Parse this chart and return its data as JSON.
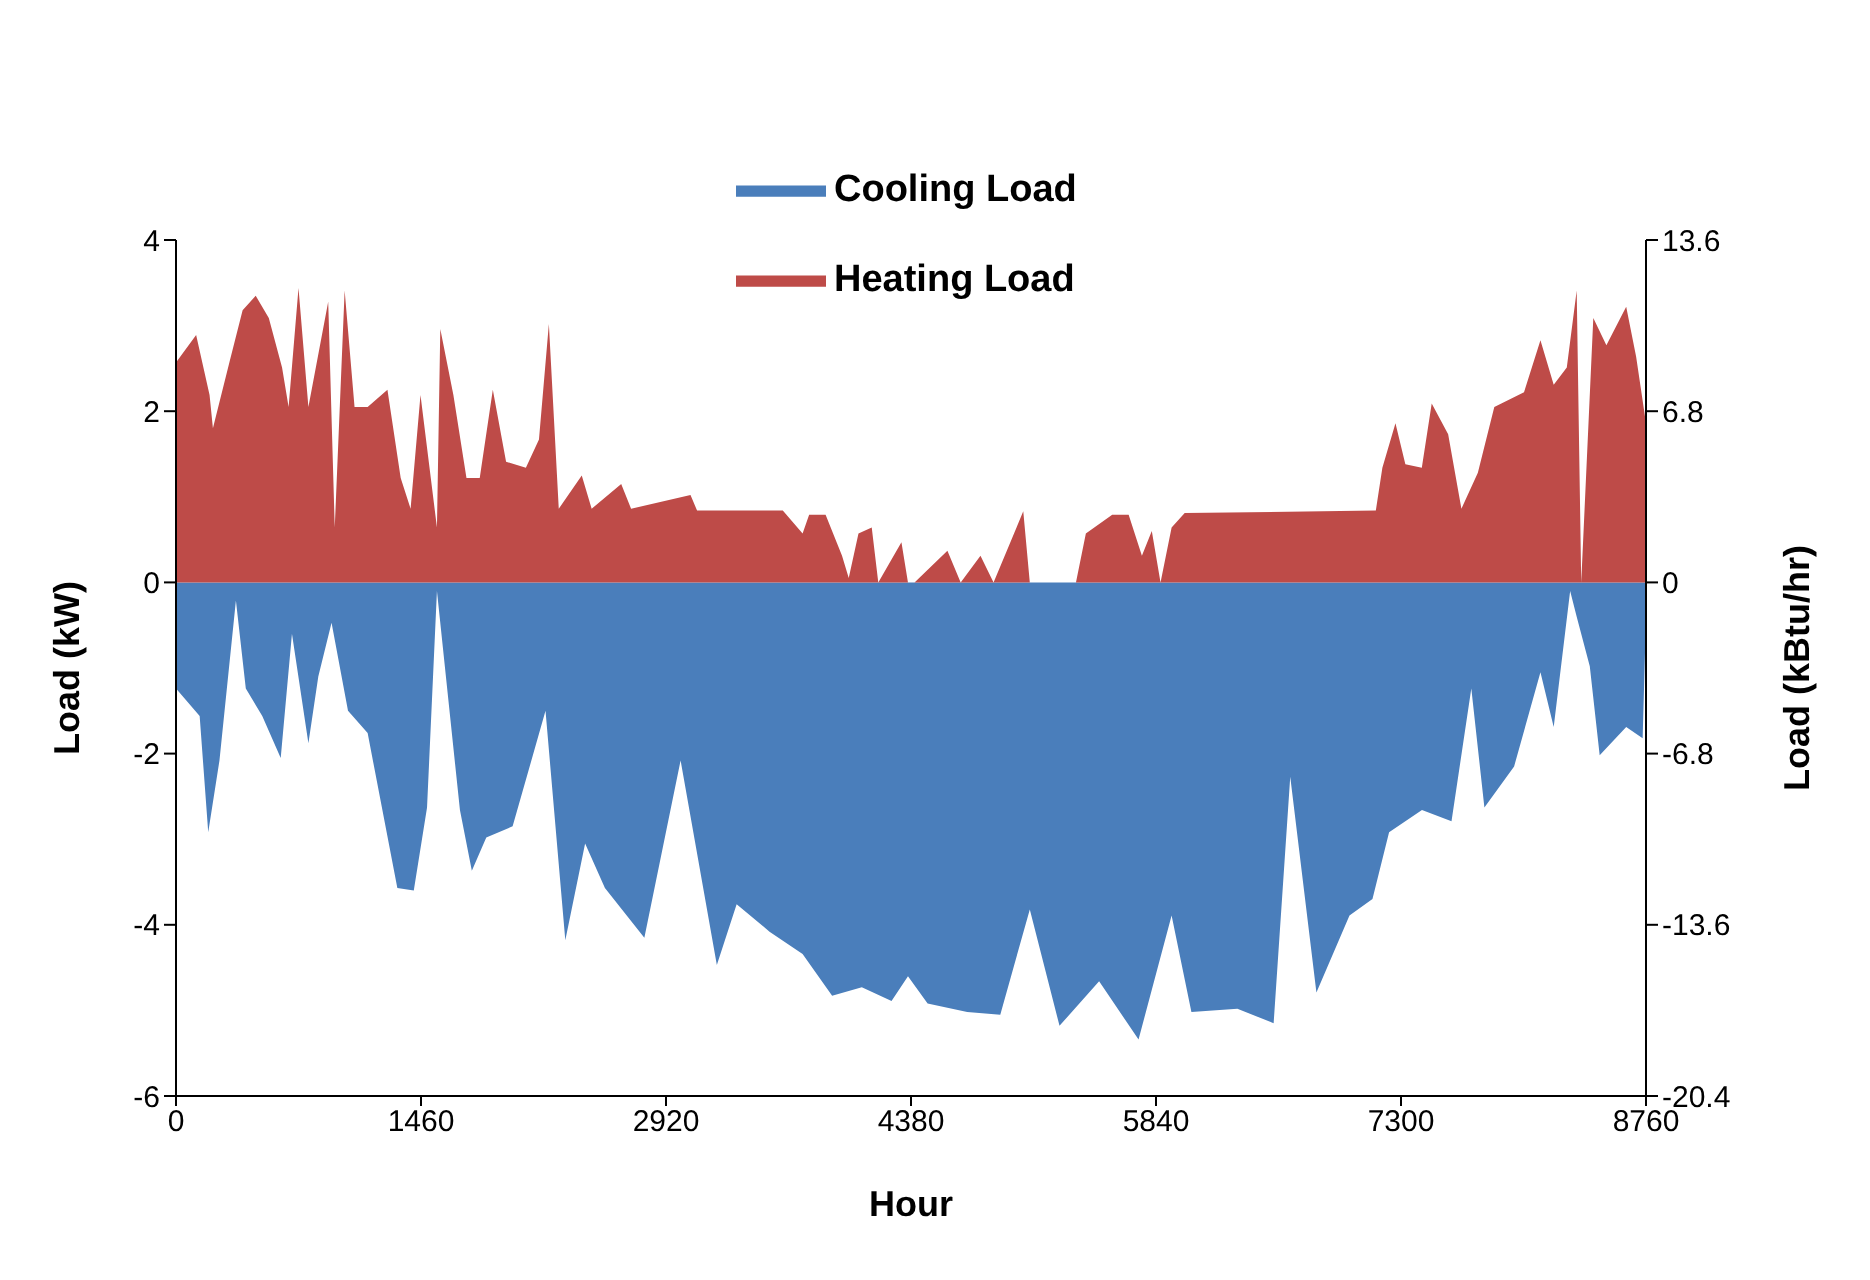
{
  "chart_data": {
    "type": "area",
    "xlabel": "Hour",
    "ylabel": "Load (kW)",
    "y2label": "Load (kBtu/hr)",
    "xlim": [
      0,
      8760
    ],
    "xticks": [
      0,
      1460,
      2920,
      4380,
      5840,
      7300,
      8760
    ],
    "ylim": [
      -6,
      4
    ],
    "yticks": [
      -6,
      -4,
      -2,
      0,
      2,
      4
    ],
    "y2lim": [
      -20.4,
      13.6
    ],
    "y2ticks": [
      -20.4,
      -13.6,
      -6.8,
      0,
      6.8,
      13.6
    ],
    "grid": false,
    "legend": "top",
    "line_style": "solid",
    "marker": "none",
    "series": [
      {
        "name": "Cooling Load",
        "color": "#4a7ebb",
        "x": [
          0,
          141,
          192,
          259,
          357,
          416,
          514,
          624,
          691,
          789,
          848,
          927,
          1025,
          1142,
          1319,
          1417,
          1496,
          1555,
          1692,
          1763,
          1849,
          2006,
          2202,
          2320,
          2438,
          2556,
          2791,
          3007,
          3223,
          3341,
          3537,
          3734,
          3910,
          4087,
          4264,
          4362,
          4479,
          4715,
          4912,
          5088,
          5265,
          5501,
          5736,
          5933,
          6051,
          6325,
          6541,
          6640,
          6796,
          6993,
          7130,
          7229,
          7425,
          7601,
          7719,
          7797,
          7974,
          8131,
          8210,
          8308,
          8347,
          8425,
          8484,
          8642,
          8740,
          8760
        ],
        "values": [
          -1.24,
          -1.56,
          -2.92,
          -2.08,
          -0.21,
          -1.24,
          -1.56,
          -2.05,
          -0.6,
          -1.88,
          -1.1,
          -0.47,
          -1.5,
          -1.76,
          -3.57,
          -3.6,
          -2.63,
          -0.1,
          -2.66,
          -3.37,
          -2.98,
          -2.85,
          -1.5,
          -4.18,
          -3.05,
          -3.57,
          -4.15,
          -2.08,
          -4.47,
          -3.76,
          -4.08,
          -4.34,
          -4.83,
          -4.73,
          -4.89,
          -4.6,
          -4.92,
          -5.02,
          -5.05,
          -3.82,
          -5.18,
          -4.66,
          -5.34,
          -3.89,
          -5.02,
          -4.98,
          -5.15,
          -2.27,
          -4.79,
          -3.89,
          -3.7,
          -2.92,
          -2.66,
          -2.79,
          -1.24,
          -2.63,
          -2.15,
          -1.05,
          -1.69,
          -0.1,
          -0.4,
          -0.98,
          -2.02,
          -1.69,
          -1.82,
          -0.4
        ]
      },
      {
        "name": "Heating Load",
        "color": "#be4b48",
        "x": [
          0,
          120,
          200,
          220,
          318,
          397,
          475,
          553,
          632,
          671,
          730,
          789,
          907,
          946,
          1005,
          1064,
          1142,
          1260,
          1339,
          1398,
          1457,
          1555,
          1575,
          1653,
          1731,
          1810,
          1888,
          1967,
          2085,
          2163,
          2222,
          2281,
          2418,
          2477,
          2653,
          2712,
          3066,
          3105,
          3616,
          3734,
          3773,
          3871,
          3969,
          4009,
          4067,
          4146,
          4185,
          4323,
          4362,
          4401,
          4597,
          4676,
          4794,
          4872,
          5049,
          5088,
          5363,
          5422,
          5579,
          5677,
          5756,
          5815,
          5867,
          5933,
          6011,
          7150,
          7189,
          7267,
          7326,
          7424,
          7483,
          7581,
          7660,
          7758,
          7856,
          8033,
          8131,
          8210,
          8288,
          8347,
          8374,
          8446,
          8524,
          8642,
          8701,
          8760
        ],
        "values": [
          2.57,
          2.89,
          2.19,
          1.8,
          2.57,
          3.18,
          3.35,
          3.09,
          2.51,
          2.05,
          3.44,
          2.05,
          3.28,
          0.64,
          3.41,
          2.05,
          2.05,
          2.25,
          1.22,
          0.86,
          2.19,
          0.64,
          2.96,
          2.19,
          1.22,
          1.22,
          2.25,
          1.41,
          1.34,
          1.67,
          3.02,
          0.86,
          1.25,
          0.86,
          1.15,
          0.86,
          1.02,
          0.84,
          0.84,
          0.57,
          0.79,
          0.79,
          0.31,
          0.05,
          0.57,
          0.64,
          0,
          0.47,
          0,
          0,
          0.37,
          0,
          0.31,
          0,
          0.83,
          0,
          0,
          0.57,
          0.79,
          0.79,
          0.31,
          0.6,
          0,
          0.64,
          0.81,
          0.84,
          1.34,
          1.86,
          1.38,
          1.34,
          2.09,
          1.73,
          0.86,
          1.28,
          2.05,
          2.22,
          2.83,
          2.31,
          2.51,
          3.41,
          0,
          3.09,
          2.77,
          3.22,
          2.64,
          1.86
        ]
      }
    ]
  }
}
